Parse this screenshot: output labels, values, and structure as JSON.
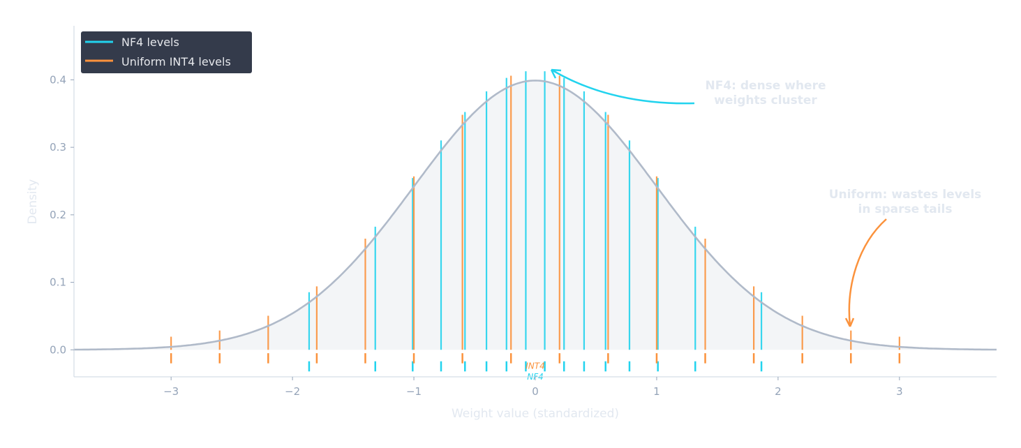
{
  "chart_data": {
    "type": "line",
    "title": "",
    "xlabel": "Weight value (standardized)",
    "ylabel": "Density",
    "xlim": [
      -3.8,
      3.8
    ],
    "ylim": [
      -0.04,
      0.48
    ],
    "xticks": [
      -3,
      -2,
      -1,
      0,
      1,
      2,
      3
    ],
    "xtick_labels": [
      "−3",
      "−2",
      "−1",
      "0",
      "1",
      "2",
      "3"
    ],
    "yticks": [
      0.0,
      0.1,
      0.2,
      0.3,
      0.4
    ],
    "ytick_labels": [
      "0.0",
      "0.1",
      "0.2",
      "0.3",
      "0.4"
    ],
    "grid": false,
    "legend_position": "top-left",
    "curve": {
      "description_of_values": "standard normal pdf",
      "color": "#b0bac9",
      "fill": "#f3f5f7"
    },
    "series": [
      {
        "name": "NF4 levels",
        "color": "#22d3ee",
        "x": [
          -1.863,
          -1.318,
          -1.01,
          -0.776,
          -0.579,
          -0.402,
          -0.237,
          -0.078,
          0.078,
          0.237,
          0.402,
          0.579,
          0.776,
          1.01,
          1.318,
          1.863
        ],
        "rug_label": "NF4"
      },
      {
        "name": "Uniform INT4 levels",
        "color": "#fb923c",
        "x": [
          -3.0,
          -2.6,
          -2.2,
          -1.8,
          -1.4,
          -1.0,
          -0.6,
          -0.2,
          0.2,
          0.6,
          1.0,
          1.4,
          1.8,
          2.2,
          2.6,
          3.0
        ],
        "rug_label": "INT4"
      }
    ],
    "annotations": [
      {
        "text": [
          "NF4: dense where",
          "weights cluster"
        ],
        "color": "#22d3ee",
        "arrow_to": [
          0.13,
          0.415
        ]
      },
      {
        "text": [
          "Uniform: wastes levels",
          "in sparse tails"
        ],
        "color": "#fb923c",
        "arrow_to": [
          2.59,
          0.03
        ]
      }
    ]
  }
}
